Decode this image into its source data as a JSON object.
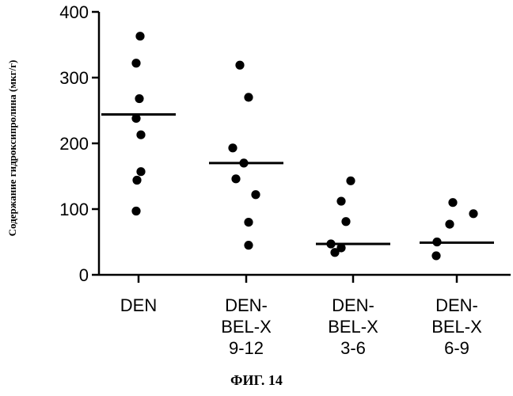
{
  "chart_data": {
    "type": "scatter",
    "ylabel": "Содержание гидроксипролина (мкг/г)",
    "ylim": [
      0,
      400
    ],
    "yticks": [
      0,
      100,
      200,
      300,
      400
    ],
    "categories": [
      {
        "lines": [
          "DEN"
        ]
      },
      {
        "lines": [
          "DEN-",
          "BEL-X",
          "9-12"
        ]
      },
      {
        "lines": [
          "DEN-",
          "BEL-X",
          "3-6"
        ]
      },
      {
        "lines": [
          "DEN-",
          "BEL-X",
          "6-9"
        ]
      }
    ],
    "series": [
      {
        "points": [
          {
            "x": 0,
            "y": 363
          },
          {
            "x": 0,
            "y": 322
          },
          {
            "x": 0,
            "y": 268
          },
          {
            "x": 0,
            "y": 238
          },
          {
            "x": 0,
            "y": 213
          },
          {
            "x": 0,
            "y": 157
          },
          {
            "x": 0,
            "y": 144
          },
          {
            "x": 0,
            "y": 97
          },
          {
            "x": 1,
            "y": 319
          },
          {
            "x": 1,
            "y": 270
          },
          {
            "x": 1,
            "y": 193
          },
          {
            "x": 1,
            "y": 170
          },
          {
            "x": 1,
            "y": 146
          },
          {
            "x": 1,
            "y": 122
          },
          {
            "x": 1,
            "y": 80
          },
          {
            "x": 1,
            "y": 45
          },
          {
            "x": 2,
            "y": 143
          },
          {
            "x": 2,
            "y": 112
          },
          {
            "x": 2,
            "y": 81
          },
          {
            "x": 2,
            "y": 47
          },
          {
            "x": 2,
            "y": 34
          },
          {
            "x": 2,
            "y": 41
          },
          {
            "x": 3,
            "y": 110
          },
          {
            "x": 3,
            "y": 93
          },
          {
            "x": 3,
            "y": 77
          },
          {
            "x": 3,
            "y": 50
          },
          {
            "x": 3,
            "y": 29
          }
        ]
      }
    ],
    "medians": [
      244,
      170,
      47,
      49
    ],
    "grid": false,
    "legend": "none"
  },
  "caption": "ФИГ. 14",
  "colors": {
    "marks": "#000000",
    "background": "#ffffff"
  }
}
